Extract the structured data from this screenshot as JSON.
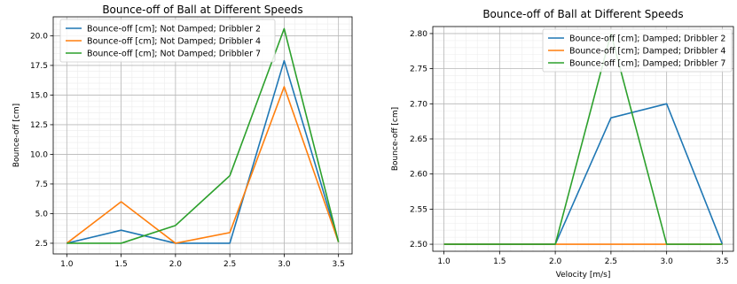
{
  "chart_data": [
    {
      "type": "line",
      "title": "Bounce-off of Ball at Different Speeds",
      "xlabel": "",
      "ylabel": "Bounce-off [cm]",
      "xlim": [
        0.875,
        3.625
      ],
      "ylim": [
        1.6,
        21.6
      ],
      "xticks": [
        1.0,
        1.5,
        2.0,
        2.5,
        3.0,
        3.5
      ],
      "xtick_labels": [
        "1.0",
        "1.5",
        "2.0",
        "2.5",
        "3.0",
        "3.5"
      ],
      "yticks": [
        2.5,
        5.0,
        7.5,
        10.0,
        12.5,
        15.0,
        17.5,
        20.0
      ],
      "ytick_labels": [
        "2.5",
        "5.0",
        "7.5",
        "10.0",
        "12.5",
        "15.0",
        "17.5",
        "20.0"
      ],
      "grid": true,
      "legend_position": "top-left",
      "x": [
        1.0,
        1.5,
        2.0,
        2.5,
        3.0,
        3.5
      ],
      "series": [
        {
          "name": "Bounce-off [cm]; Not Damped; Dribbler 2",
          "color": "#1f77b4",
          "values": [
            2.5,
            3.6,
            2.5,
            2.5,
            17.9,
            2.6
          ]
        },
        {
          "name": "Bounce-off [cm]; Not Damped; Dribbler 4",
          "color": "#ff7f0e",
          "values": [
            2.5,
            6.0,
            2.5,
            3.4,
            15.7,
            2.6
          ]
        },
        {
          "name": "Bounce-off [cm]; Not Damped; Dribbler 7",
          "color": "#2ca02c",
          "values": [
            2.5,
            2.5,
            4.0,
            8.2,
            20.6,
            2.6
          ]
        }
      ]
    },
    {
      "type": "line",
      "title": "Bounce-off of Ball at Different Speeds",
      "xlabel": "Velocity [m/s]",
      "ylabel": "Bounce-off [cm]",
      "xlim": [
        0.9,
        3.6
      ],
      "ylim": [
        2.49,
        2.81
      ],
      "xticks": [
        1.0,
        1.5,
        2.0,
        2.5,
        3.0,
        3.5
      ],
      "xtick_labels": [
        "1.0",
        "1.5",
        "2.0",
        "2.5",
        "3.0",
        "3.5"
      ],
      "yticks": [
        2.5,
        2.55,
        2.6,
        2.65,
        2.7,
        2.75,
        2.8
      ],
      "ytick_labels": [
        "2.50",
        "2.55",
        "2.60",
        "2.65",
        "2.70",
        "2.75",
        "2.80"
      ],
      "grid": true,
      "legend_position": "top-right",
      "x": [
        1.0,
        1.5,
        2.0,
        2.5,
        3.0,
        3.5
      ],
      "series": [
        {
          "name": "Bounce-off [cm]; Damped; Dribbler 2",
          "color": "#1f77b4",
          "values": [
            2.5,
            2.5,
            2.5,
            2.68,
            2.7,
            2.5
          ]
        },
        {
          "name": "Bounce-off [cm]; Damped; Dribbler 4",
          "color": "#ff7f0e",
          "values": [
            2.5,
            2.5,
            2.5,
            2.5,
            2.5,
            2.5
          ]
        },
        {
          "name": "Bounce-off [cm]; Damped; Dribbler 7",
          "color": "#2ca02c",
          "values": [
            2.5,
            2.5,
            2.5,
            2.8,
            2.5,
            2.5
          ]
        }
      ]
    }
  ]
}
